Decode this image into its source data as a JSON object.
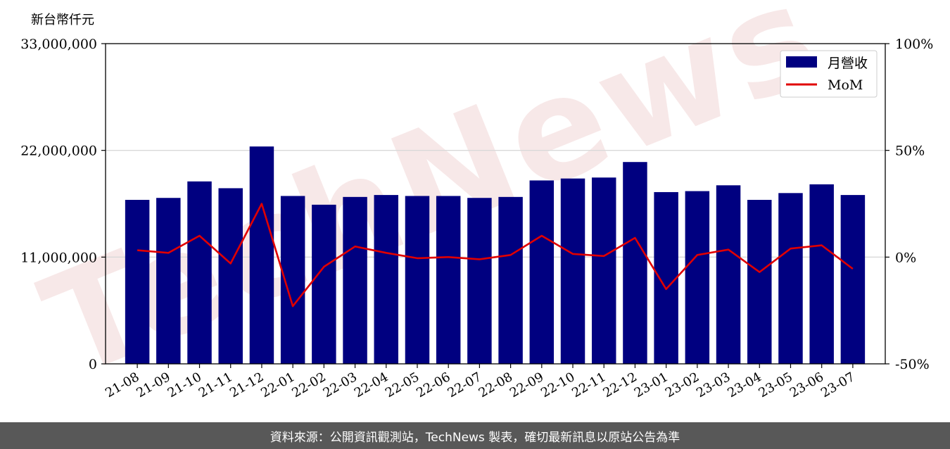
{
  "chart_data": {
    "type": "bar+line",
    "unit_label": "新台幣仟元",
    "categories": [
      "21-08",
      "21-09",
      "21-10",
      "21-11",
      "21-12",
      "22-01",
      "22-02",
      "22-03",
      "22-04",
      "22-05",
      "22-06",
      "22-07",
      "22-08",
      "22-09",
      "22-10",
      "22-11",
      "22-12",
      "23-01",
      "23-02",
      "23-03",
      "23-04",
      "23-05",
      "23-06",
      "23-07"
    ],
    "series": [
      {
        "name": "月營收",
        "type": "bar",
        "axis": "left",
        "color": "#000080",
        "values": [
          16900000,
          17100000,
          18800000,
          18100000,
          22400000,
          17300000,
          16400000,
          17200000,
          17400000,
          17300000,
          17300000,
          17100000,
          17200000,
          18900000,
          19100000,
          19200000,
          20800000,
          17700000,
          17800000,
          18400000,
          16900000,
          17600000,
          18500000,
          17400000
        ]
      },
      {
        "name": "MoM",
        "type": "line",
        "axis": "right",
        "color": "#e00000",
        "values": [
          3.2,
          2.0,
          10.0,
          -3.0,
          25.0,
          -23.0,
          -4.5,
          5.0,
          2.0,
          -0.5,
          0.0,
          -1.0,
          1.0,
          10.0,
          1.5,
          0.5,
          9.0,
          -15.0,
          1.0,
          3.5,
          -7.0,
          4.0,
          5.5,
          -5.5
        ]
      }
    ],
    "yleft": {
      "lim": [
        0,
        33000000
      ],
      "ticks": [
        0,
        11000000,
        22000000,
        33000000
      ],
      "tick_labels": [
        "0",
        "11,000,000",
        "22,000,000",
        "33,000,000"
      ]
    },
    "yright": {
      "lim": [
        -50,
        100
      ],
      "ticks": [
        -50,
        0,
        50,
        100
      ],
      "tick_labels": [
        "-50%",
        "0%",
        "50%",
        "100%"
      ]
    },
    "grid": "horizontal",
    "legend_position": "top-right",
    "watermark": "TechNews"
  },
  "footer": {
    "source_note": "資料來源：公開資訊觀測站，TechNews 製表，確切最新訊息以原站公告為準"
  }
}
